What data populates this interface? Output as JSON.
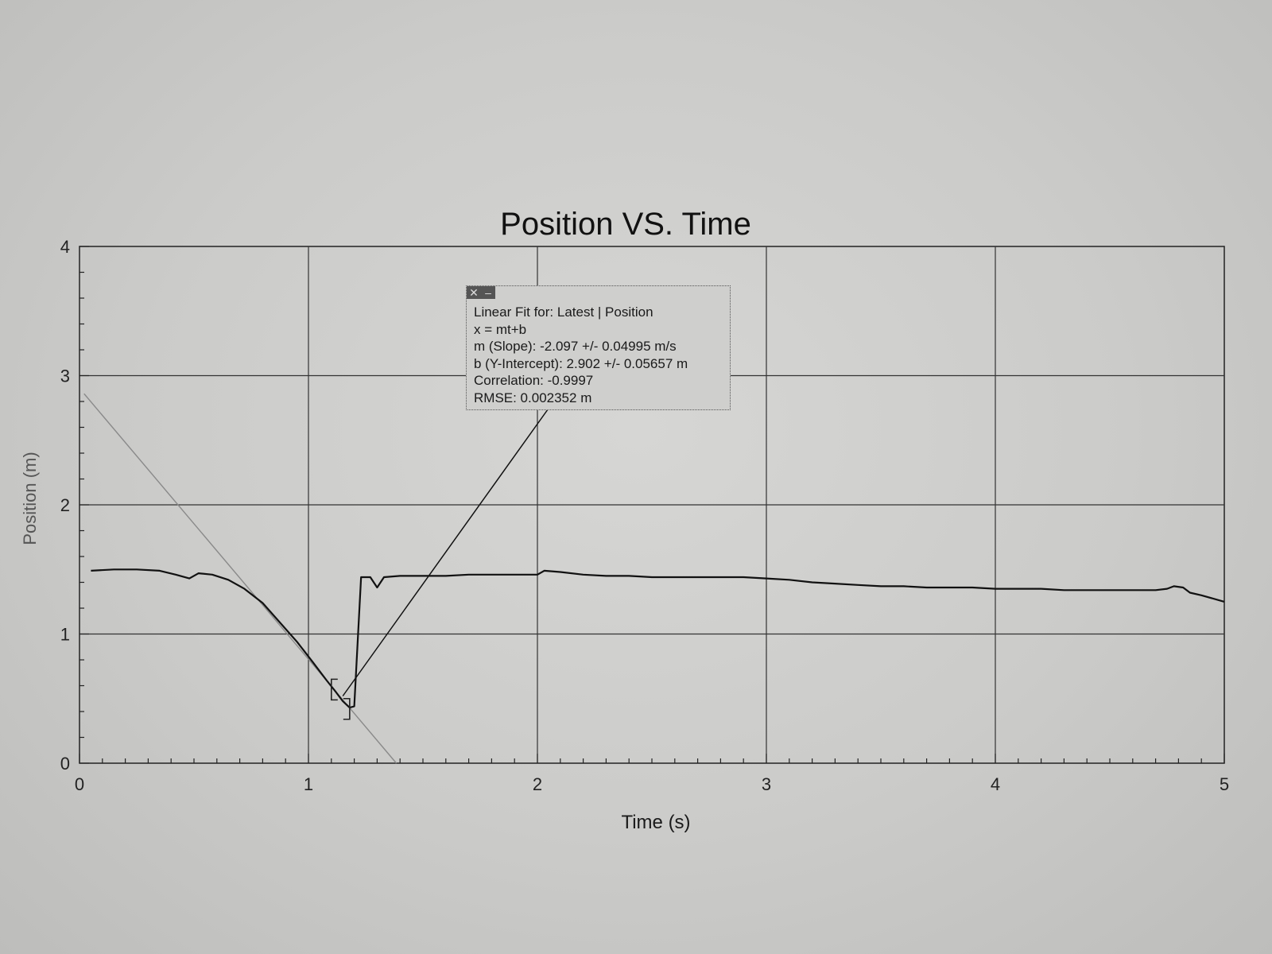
{
  "fit_box": {
    "controls": {
      "close_glyph": "✕",
      "minimize_glyph": "–"
    },
    "lines": [
      "Linear Fit for: Latest | Position",
      "x = mt+b",
      "m (Slope): -2.097 +/- 0.04995 m/s",
      "b (Y-Intercept): 2.902 +/- 0.05657 m",
      "Correlation: -0.9997",
      "RMSE: 0.002352 m"
    ]
  },
  "chart_data": {
    "type": "line",
    "title": "Position VS. Time",
    "xlabel": "Time (s)",
    "ylabel": "Position (m)",
    "xlim": [
      0,
      5
    ],
    "ylim": [
      0,
      4
    ],
    "grid": true,
    "x_ticks": [
      "0",
      "1",
      "2",
      "3",
      "4",
      "5"
    ],
    "y_ticks": [
      "0",
      "1",
      "2",
      "3",
      "4"
    ],
    "series": [
      {
        "points": [
          [
            0.05,
            1.49
          ],
          [
            0.15,
            1.5
          ],
          [
            0.25,
            1.5
          ],
          [
            0.35,
            1.49
          ],
          [
            0.42,
            1.46
          ],
          [
            0.48,
            1.43
          ],
          [
            0.52,
            1.47
          ],
          [
            0.58,
            1.46
          ],
          [
            0.65,
            1.42
          ],
          [
            0.72,
            1.35
          ],
          [
            0.8,
            1.24
          ],
          [
            0.88,
            1.08
          ],
          [
            0.95,
            0.94
          ],
          [
            1.02,
            0.78
          ],
          [
            1.08,
            0.64
          ],
          [
            1.12,
            0.55
          ],
          [
            1.15,
            0.48
          ],
          [
            1.18,
            0.43
          ],
          [
            1.2,
            0.44
          ],
          [
            1.23,
            1.44
          ],
          [
            1.27,
            1.44
          ],
          [
            1.3,
            1.36
          ],
          [
            1.33,
            1.44
          ],
          [
            1.4,
            1.45
          ],
          [
            1.5,
            1.45
          ],
          [
            1.6,
            1.45
          ],
          [
            1.7,
            1.46
          ],
          [
            1.8,
            1.46
          ],
          [
            1.9,
            1.46
          ],
          [
            2.0,
            1.46
          ],
          [
            2.03,
            1.49
          ],
          [
            2.1,
            1.48
          ],
          [
            2.2,
            1.46
          ],
          [
            2.3,
            1.45
          ],
          [
            2.4,
            1.45
          ],
          [
            2.5,
            1.44
          ],
          [
            2.6,
            1.44
          ],
          [
            2.7,
            1.44
          ],
          [
            2.8,
            1.44
          ],
          [
            2.9,
            1.44
          ],
          [
            3.0,
            1.43
          ],
          [
            3.1,
            1.42
          ],
          [
            3.2,
            1.4
          ],
          [
            3.3,
            1.39
          ],
          [
            3.4,
            1.38
          ],
          [
            3.5,
            1.37
          ],
          [
            3.6,
            1.37
          ],
          [
            3.7,
            1.36
          ],
          [
            3.8,
            1.36
          ],
          [
            3.9,
            1.36
          ],
          [
            4.0,
            1.35
          ],
          [
            4.1,
            1.35
          ],
          [
            4.2,
            1.35
          ],
          [
            4.3,
            1.34
          ],
          [
            4.4,
            1.34
          ],
          [
            4.5,
            1.34
          ],
          [
            4.6,
            1.34
          ],
          [
            4.7,
            1.34
          ],
          [
            4.75,
            1.35
          ],
          [
            4.78,
            1.37
          ],
          [
            4.82,
            1.36
          ],
          [
            4.85,
            1.32
          ],
          [
            4.9,
            1.3
          ],
          [
            5.0,
            1.25
          ]
        ]
      }
    ],
    "linear_fit": {
      "slope": -2.097,
      "intercept": 2.902
    },
    "fit_region": [
      1.1,
      1.18
    ],
    "fit_pointer": {
      "from": [
        1.15,
        0.52
      ],
      "to": [
        2.05,
        2.75
      ]
    }
  }
}
